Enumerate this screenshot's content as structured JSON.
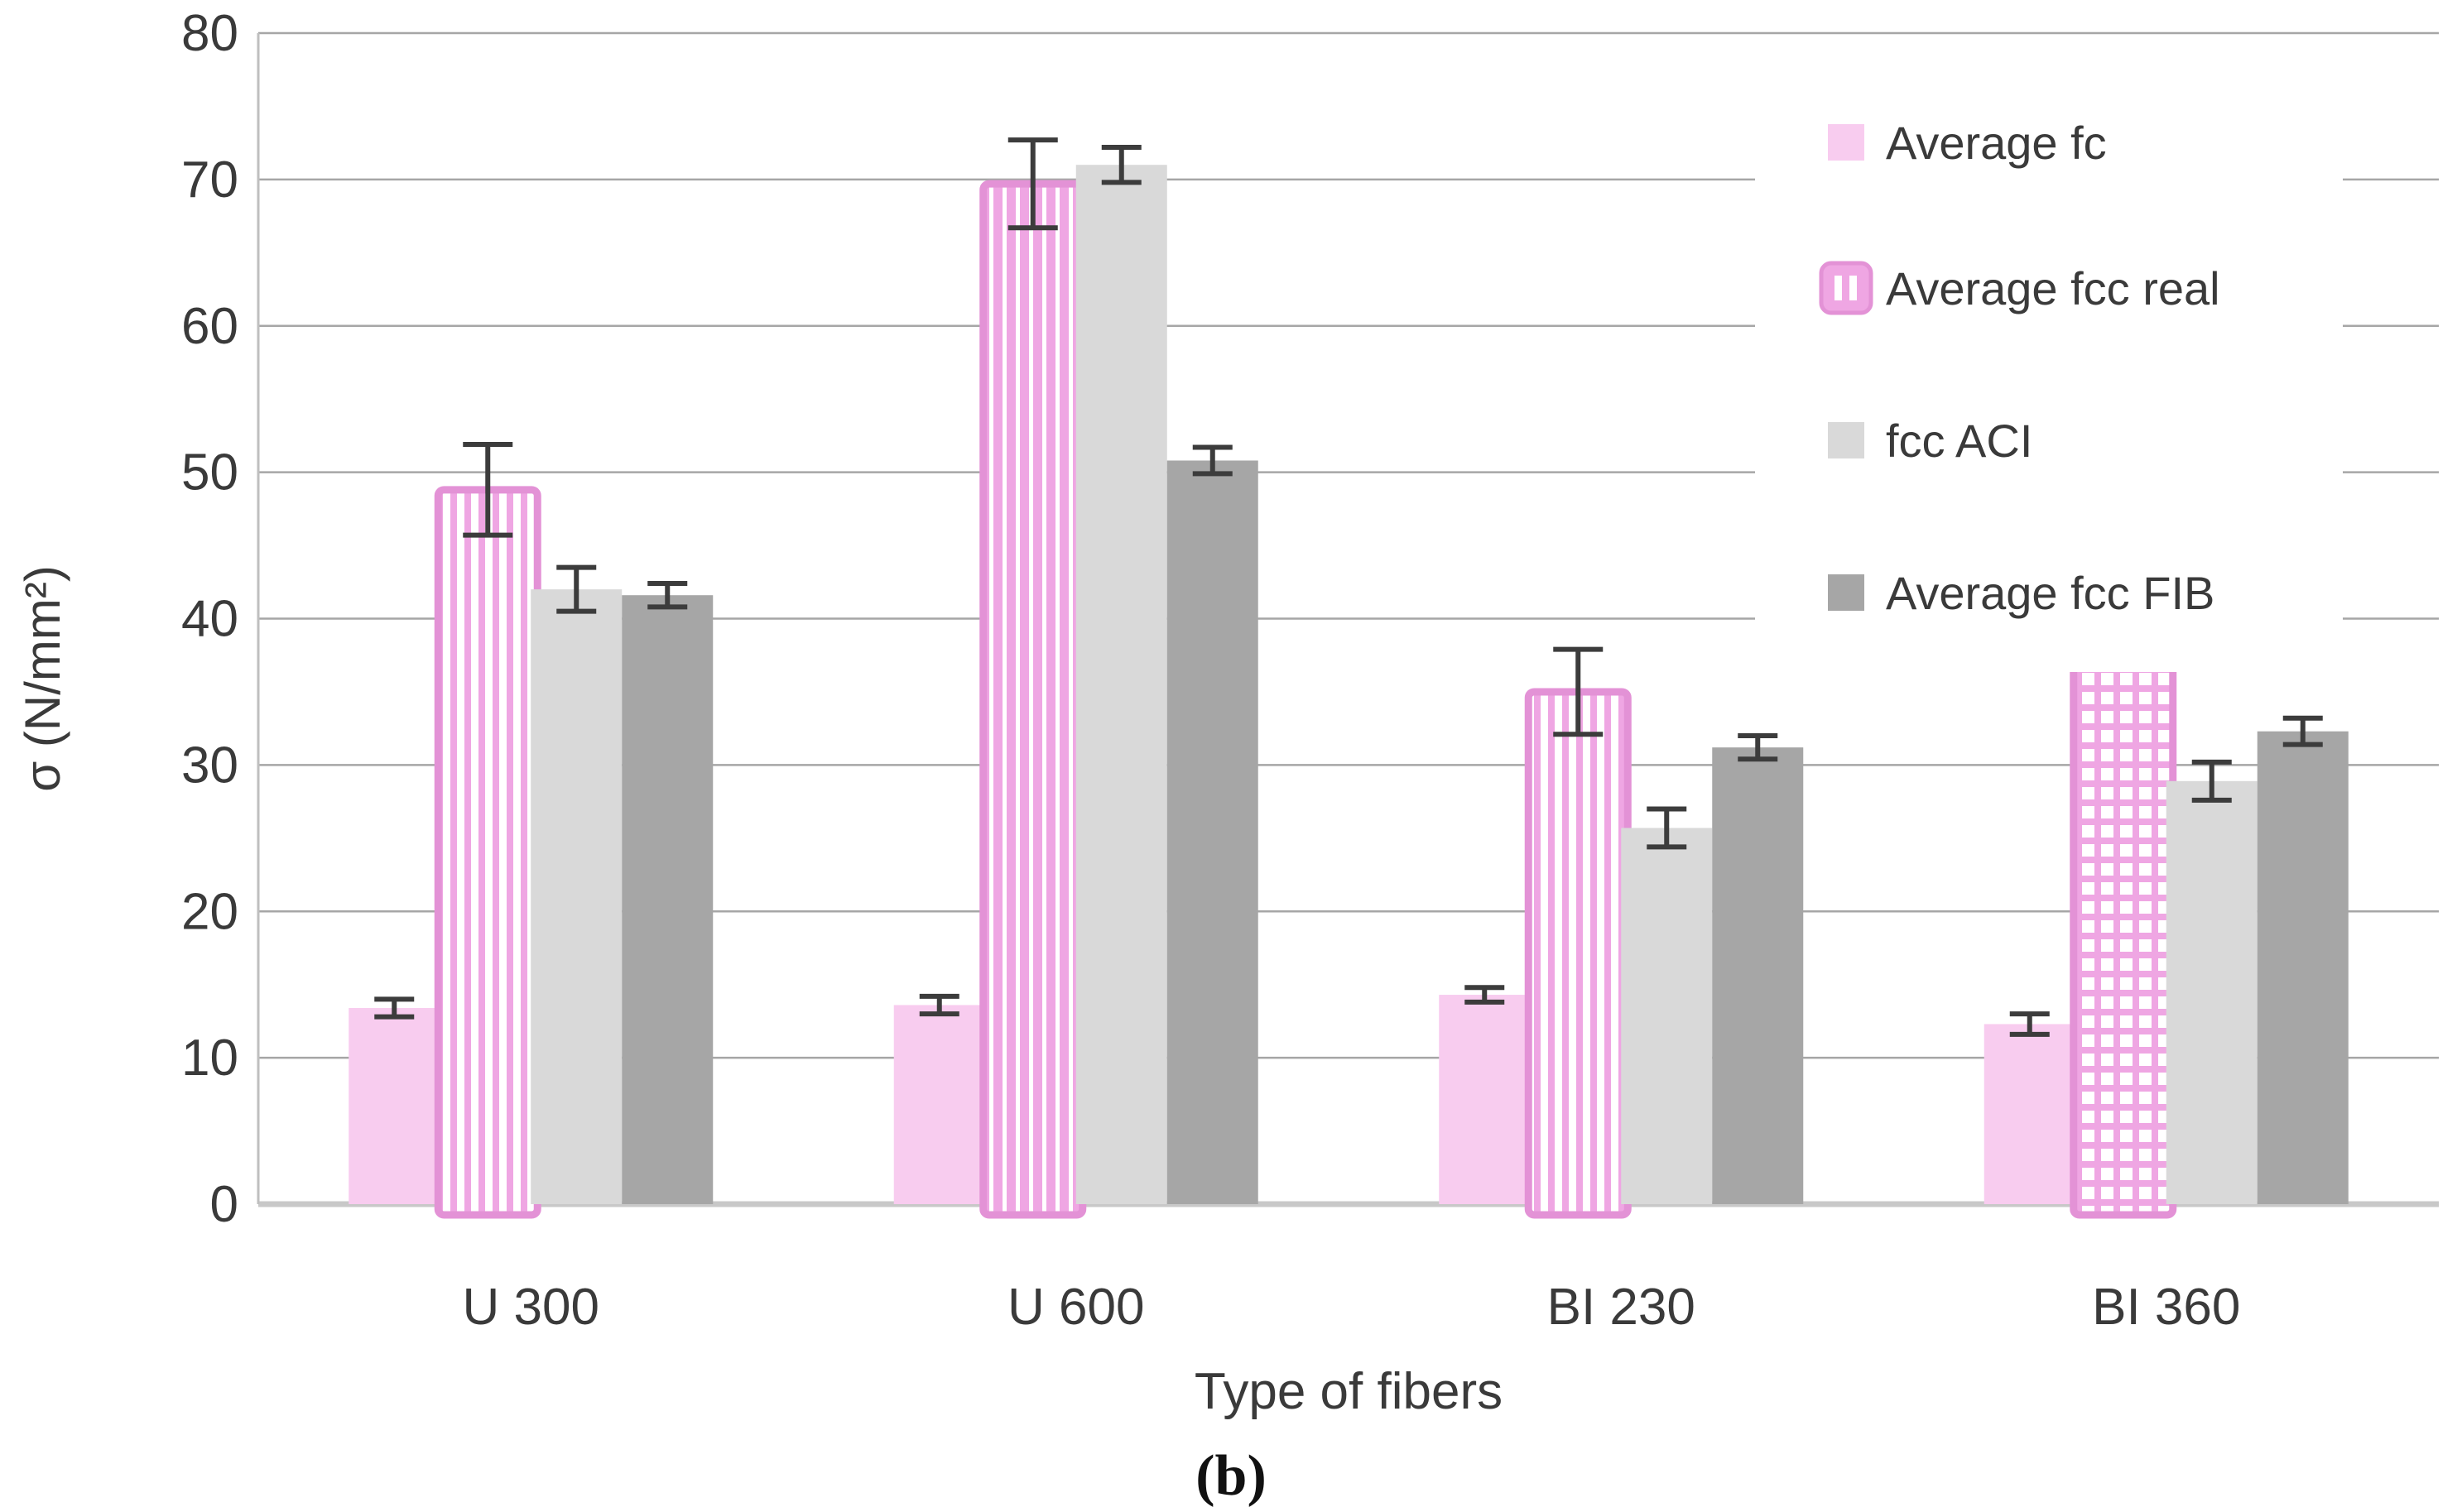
{
  "figure": {
    "caption": "(b)"
  },
  "chart_data": {
    "type": "bar",
    "title": "",
    "xlabel": "Type of fibers",
    "ylabel": "σ (N/mm²)",
    "ylim": [
      0,
      80
    ],
    "yticks": [
      0,
      10,
      20,
      30,
      40,
      50,
      60,
      70,
      80
    ],
    "grid": true,
    "legend_position": "top-right-inside",
    "categories": [
      "U 300",
      "U 600",
      "BI 230",
      "BI 360"
    ],
    "series": [
      {
        "name": "Average fc",
        "pattern": "solid",
        "color": "#F8CCEF",
        "values": [
          13.4,
          13.6,
          14.3,
          12.3
        ],
        "errors": [
          0.6,
          0.6,
          0.5,
          0.7
        ]
      },
      {
        "name": "Average fcc real",
        "pattern": "striped",
        "color": "#EFA6E3",
        "border_color": "#E392D6",
        "pattern_by_category": [
          "stripes",
          "stripes-dense",
          "stripes",
          "grid"
        ],
        "values": [
          48.8,
          69.7,
          35.0,
          41.5
        ],
        "errors": [
          3.1,
          3.0,
          2.9,
          2.9
        ]
      },
      {
        "name": "fcc ACI",
        "pattern": "solid",
        "color": "#D9D9D9",
        "values": [
          42.0,
          71.0,
          25.7,
          28.9
        ],
        "errors": [
          1.5,
          1.2,
          1.3,
          1.3
        ]
      },
      {
        "name": "Average fcc FIB",
        "pattern": "solid",
        "color": "#A6A6A6",
        "values": [
          41.6,
          50.8,
          31.2,
          32.3
        ],
        "errors": [
          0.8,
          0.9,
          0.8,
          0.9
        ]
      }
    ],
    "colors": {
      "background": "#FFFFFF",
      "gridline": "#A6A6A6",
      "axis_line": "#C8C8C8",
      "error_bar": "#3C3C3C",
      "text": "#3A3A3A"
    }
  }
}
